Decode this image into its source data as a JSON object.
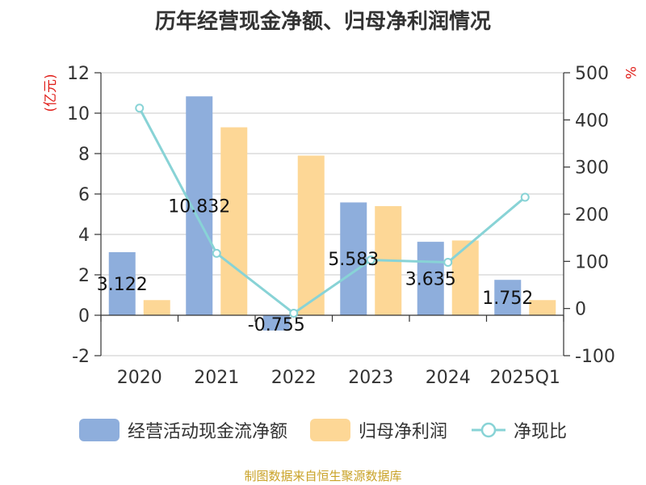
{
  "title": "历年经营现金净额、归母净利润情况",
  "source": "制图数据来自恒生聚源数据库",
  "chart_data": {
    "type": "bar",
    "categories": [
      "2020",
      "2021",
      "2022",
      "2023",
      "2024",
      "2025Q1"
    ],
    "series": [
      {
        "name": "经营活动现金流净额",
        "type": "bar",
        "axis": "left",
        "color": "#8eaedc",
        "values": [
          3.122,
          10.832,
          -0.755,
          5.583,
          3.635,
          1.752
        ],
        "labels": [
          "3.122",
          "10.832",
          "-0.755",
          "5.583",
          "3.635",
          "1.752"
        ]
      },
      {
        "name": "归母净利润",
        "type": "bar",
        "axis": "left",
        "color": "#fdd796",
        "values": [
          0.75,
          9.3,
          7.9,
          5.4,
          3.7,
          0.75
        ]
      },
      {
        "name": "净现比",
        "type": "line",
        "axis": "right",
        "color": "#88d3d6",
        "values": [
          425,
          117,
          -10,
          103,
          98,
          236
        ]
      }
    ],
    "y_left": {
      "label": "(亿元)",
      "min": -2,
      "max": 12,
      "ticks": [
        -2,
        0,
        2,
        4,
        6,
        8,
        10,
        12
      ]
    },
    "y_right": {
      "label": "%",
      "min": -100,
      "max": 500,
      "ticks": [
        -100,
        0,
        100,
        200,
        300,
        400,
        500
      ]
    },
    "grid": true,
    "legend_position": "bottom"
  },
  "legend": [
    {
      "label": "经营活动现金流净额",
      "color": "#8eaedc",
      "kind": "bar"
    },
    {
      "label": "归母净利润",
      "color": "#fdd796",
      "kind": "bar"
    },
    {
      "label": "净现比",
      "color": "#88d3d6",
      "kind": "line"
    }
  ]
}
